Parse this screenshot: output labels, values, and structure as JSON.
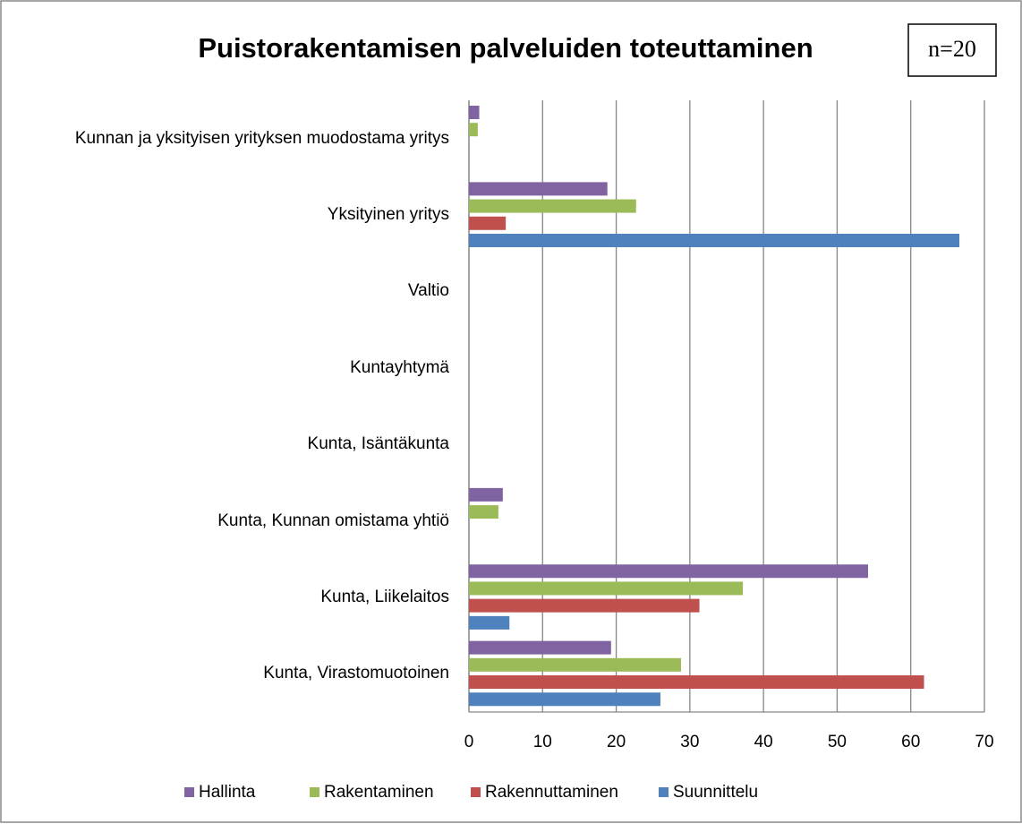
{
  "chart_data": {
    "type": "bar",
    "orientation": "horizontal",
    "title": "Puistorakentamisen palveluiden toteuttaminen",
    "annotation": "n=20",
    "categories": [
      "Kunnan ja yksityisen yrityksen muodostama yritys",
      "Yksityinen yritys",
      "Valtio",
      "Kuntayhtymä",
      "Kunta, Isäntäkunta",
      "Kunta, Kunnan omistama yhtiö",
      "Kunta, Liikelaitos",
      "Kunta, Virastomuotoinen"
    ],
    "series": [
      {
        "name": "Hallinta",
        "color": "#8064a2",
        "values": [
          1.4,
          18.8,
          0,
          0,
          0,
          4.6,
          54.2,
          19.3
        ]
      },
      {
        "name": "Rakentaminen",
        "color": "#9bbb59",
        "values": [
          1.2,
          22.7,
          0,
          0,
          0,
          4.0,
          37.2,
          28.8
        ]
      },
      {
        "name": "Rakennuttaminen",
        "color": "#c0504d",
        "values": [
          0,
          5.0,
          0,
          0,
          0,
          0,
          31.3,
          61.8
        ]
      },
      {
        "name": "Suunnittelu",
        "color": "#4f81bd",
        "values": [
          0,
          66.6,
          0,
          0,
          0,
          0,
          5.5,
          26.0
        ]
      }
    ],
    "xlim": [
      0,
      70
    ],
    "xticks": [
      0,
      10,
      20,
      30,
      40,
      50,
      60,
      70
    ],
    "grid": true,
    "legend": "bottom"
  }
}
